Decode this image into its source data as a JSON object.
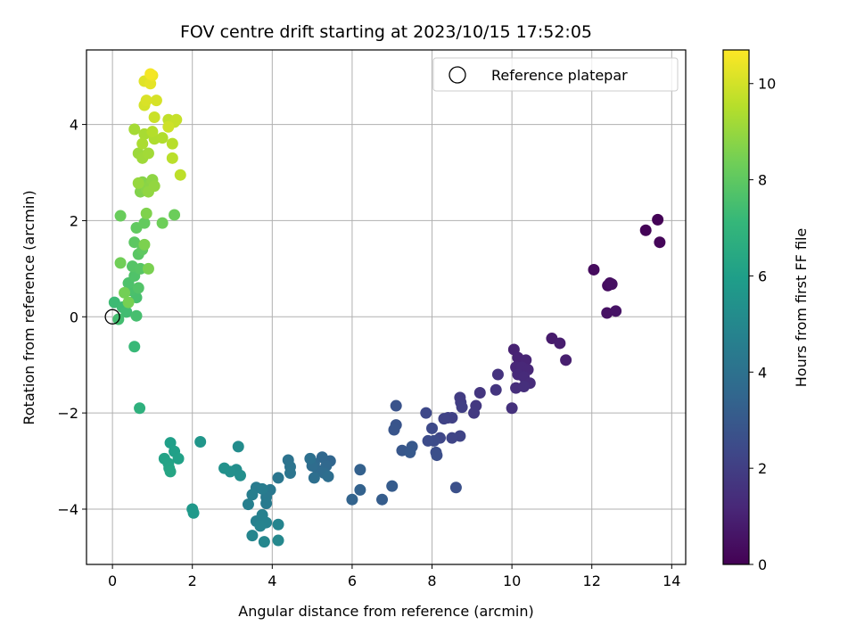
{
  "chart_data": {
    "type": "scatter",
    "title": "FOV centre drift starting at 2023/10/15 17:52:05",
    "xlabel": "Angular distance from reference (arcmin)",
    "ylabel": "Rotation from reference (arcmin)",
    "xlim": [
      -0.65,
      14.35
    ],
    "ylim": [
      -5.15,
      5.55
    ],
    "xticks": [
      0,
      2,
      4,
      6,
      8,
      10,
      12,
      14
    ],
    "yticks": [
      -4,
      -2,
      0,
      2,
      4
    ],
    "grid": true,
    "legend": {
      "location": "upper right",
      "entries": [
        "Reference platepar"
      ]
    },
    "reference_point": {
      "x": 0,
      "y": 0,
      "marker": "open circle"
    },
    "colorbar": {
      "label": "Hours from first FF file",
      "colormap": "viridis",
      "range": [
        0,
        10.7
      ],
      "ticks": [
        0,
        2,
        4,
        6,
        8,
        10
      ]
    },
    "colormap_stops": [
      "#440154",
      "#482878",
      "#3e4989",
      "#31688e",
      "#26828e",
      "#1f9e89",
      "#35b779",
      "#6ece58",
      "#b5de2b",
      "#fde725"
    ],
    "points": [
      {
        "x": 13.65,
        "y": 2.02,
        "h": 0.05
      },
      {
        "x": 13.35,
        "y": 1.8,
        "h": 0.1
      },
      {
        "x": 13.7,
        "y": 1.55,
        "h": 0.15
      },
      {
        "x": 12.05,
        "y": 0.98,
        "h": 0.3
      },
      {
        "x": 12.4,
        "y": 0.65,
        "h": 0.35
      },
      {
        "x": 12.45,
        "y": 0.7,
        "h": 0.4
      },
      {
        "x": 12.5,
        "y": 0.68,
        "h": 0.45
      },
      {
        "x": 12.38,
        "y": 0.08,
        "h": 0.5
      },
      {
        "x": 12.6,
        "y": 0.12,
        "h": 0.55
      },
      {
        "x": 11.0,
        "y": -0.45,
        "h": 0.8
      },
      {
        "x": 11.2,
        "y": -0.55,
        "h": 0.85
      },
      {
        "x": 11.35,
        "y": -0.9,
        "h": 0.9
      },
      {
        "x": 10.05,
        "y": -0.68,
        "h": 1.0
      },
      {
        "x": 10.15,
        "y": -0.85,
        "h": 1.05
      },
      {
        "x": 10.35,
        "y": -0.9,
        "h": 1.1
      },
      {
        "x": 10.1,
        "y": -1.05,
        "h": 1.15
      },
      {
        "x": 10.25,
        "y": -1.05,
        "h": 1.2
      },
      {
        "x": 10.4,
        "y": -1.1,
        "h": 1.2
      },
      {
        "x": 10.15,
        "y": -1.2,
        "h": 1.25
      },
      {
        "x": 10.3,
        "y": -1.25,
        "h": 1.3
      },
      {
        "x": 10.45,
        "y": -1.38,
        "h": 1.35
      },
      {
        "x": 10.1,
        "y": -1.48,
        "h": 1.4
      },
      {
        "x": 10.3,
        "y": -1.45,
        "h": 1.45
      },
      {
        "x": 10.0,
        "y": -1.9,
        "h": 1.5
      },
      {
        "x": 9.65,
        "y": -1.2,
        "h": 1.6
      },
      {
        "x": 9.6,
        "y": -1.52,
        "h": 1.65
      },
      {
        "x": 9.2,
        "y": -1.58,
        "h": 1.7
      },
      {
        "x": 9.1,
        "y": -1.85,
        "h": 1.75
      },
      {
        "x": 9.05,
        "y": -2.0,
        "h": 1.8
      },
      {
        "x": 8.7,
        "y": -1.68,
        "h": 1.9
      },
      {
        "x": 8.72,
        "y": -1.78,
        "h": 1.95
      },
      {
        "x": 8.75,
        "y": -1.88,
        "h": 2.0
      },
      {
        "x": 8.4,
        "y": -2.1,
        "h": 2.05
      },
      {
        "x": 8.5,
        "y": -2.1,
        "h": 2.1
      },
      {
        "x": 8.3,
        "y": -2.12,
        "h": 2.15
      },
      {
        "x": 8.7,
        "y": -2.48,
        "h": 2.2
      },
      {
        "x": 8.5,
        "y": -2.52,
        "h": 2.25
      },
      {
        "x": 8.2,
        "y": -2.52,
        "h": 2.3
      },
      {
        "x": 7.85,
        "y": -2.0,
        "h": 2.35
      },
      {
        "x": 8.0,
        "y": -2.32,
        "h": 2.4
      },
      {
        "x": 8.05,
        "y": -2.58,
        "h": 2.45
      },
      {
        "x": 7.9,
        "y": -2.58,
        "h": 2.5
      },
      {
        "x": 8.1,
        "y": -2.82,
        "h": 2.55
      },
      {
        "x": 8.12,
        "y": -2.88,
        "h": 2.6
      },
      {
        "x": 8.6,
        "y": -3.55,
        "h": 2.65
      },
      {
        "x": 7.1,
        "y": -1.85,
        "h": 2.75
      },
      {
        "x": 7.1,
        "y": -2.25,
        "h": 2.8
      },
      {
        "x": 7.05,
        "y": -2.35,
        "h": 2.85
      },
      {
        "x": 7.25,
        "y": -2.78,
        "h": 2.9
      },
      {
        "x": 7.5,
        "y": -2.7,
        "h": 2.95
      },
      {
        "x": 7.45,
        "y": -2.82,
        "h": 3.0
      },
      {
        "x": 7.0,
        "y": -3.52,
        "h": 3.1
      },
      {
        "x": 6.75,
        "y": -3.8,
        "h": 3.15
      },
      {
        "x": 6.2,
        "y": -3.18,
        "h": 3.3
      },
      {
        "x": 6.2,
        "y": -3.6,
        "h": 3.35
      },
      {
        "x": 6.0,
        "y": -3.8,
        "h": 3.4
      },
      {
        "x": 5.45,
        "y": -3.0,
        "h": 3.5
      },
      {
        "x": 5.25,
        "y": -2.92,
        "h": 3.55
      },
      {
        "x": 5.35,
        "y": -3.1,
        "h": 3.6
      },
      {
        "x": 5.05,
        "y": -3.05,
        "h": 3.65
      },
      {
        "x": 5.15,
        "y": -3.2,
        "h": 3.7
      },
      {
        "x": 5.3,
        "y": -3.25,
        "h": 3.75
      },
      {
        "x": 5.0,
        "y": -3.1,
        "h": 3.8
      },
      {
        "x": 5.4,
        "y": -3.32,
        "h": 3.85
      },
      {
        "x": 5.05,
        "y": -3.35,
        "h": 3.9
      },
      {
        "x": 4.95,
        "y": -2.95,
        "h": 3.95
      },
      {
        "x": 4.4,
        "y": -2.98,
        "h": 4.05
      },
      {
        "x": 4.45,
        "y": -3.12,
        "h": 4.1
      },
      {
        "x": 4.45,
        "y": -3.25,
        "h": 4.15
      },
      {
        "x": 4.15,
        "y": -3.35,
        "h": 4.2
      },
      {
        "x": 3.95,
        "y": -3.6,
        "h": 4.3
      },
      {
        "x": 3.85,
        "y": -3.75,
        "h": 4.35
      },
      {
        "x": 3.85,
        "y": -3.88,
        "h": 4.4
      },
      {
        "x": 3.6,
        "y": -3.55,
        "h": 4.45
      },
      {
        "x": 3.75,
        "y": -3.58,
        "h": 4.5
      },
      {
        "x": 3.5,
        "y": -3.7,
        "h": 4.55
      },
      {
        "x": 3.4,
        "y": -3.9,
        "h": 4.6
      },
      {
        "x": 3.6,
        "y": -4.25,
        "h": 4.65
      },
      {
        "x": 3.75,
        "y": -4.12,
        "h": 4.7
      },
      {
        "x": 3.85,
        "y": -4.28,
        "h": 4.75
      },
      {
        "x": 3.7,
        "y": -4.35,
        "h": 4.8
      },
      {
        "x": 4.15,
        "y": -4.32,
        "h": 4.85
      },
      {
        "x": 3.5,
        "y": -4.55,
        "h": 4.9
      },
      {
        "x": 3.8,
        "y": -4.68,
        "h": 4.95
      },
      {
        "x": 4.15,
        "y": -4.65,
        "h": 5.0
      },
      {
        "x": 3.15,
        "y": -2.7,
        "h": 5.2
      },
      {
        "x": 3.1,
        "y": -3.18,
        "h": 5.25
      },
      {
        "x": 3.2,
        "y": -3.3,
        "h": 5.3
      },
      {
        "x": 2.95,
        "y": -3.22,
        "h": 5.35
      },
      {
        "x": 2.8,
        "y": -3.15,
        "h": 5.4
      },
      {
        "x": 2.2,
        "y": -2.6,
        "h": 5.6
      },
      {
        "x": 2.0,
        "y": -4.0,
        "h": 5.7
      },
      {
        "x": 2.03,
        "y": -4.08,
        "h": 5.75
      },
      {
        "x": 1.45,
        "y": -2.62,
        "h": 6.0
      },
      {
        "x": 1.55,
        "y": -2.8,
        "h": 6.05
      },
      {
        "x": 1.65,
        "y": -2.95,
        "h": 6.1
      },
      {
        "x": 1.3,
        "y": -2.95,
        "h": 6.15
      },
      {
        "x": 1.4,
        "y": -3.05,
        "h": 6.2
      },
      {
        "x": 1.42,
        "y": -3.15,
        "h": 6.25
      },
      {
        "x": 1.45,
        "y": -3.22,
        "h": 6.3
      },
      {
        "x": 0.68,
        "y": -1.9,
        "h": 6.8
      },
      {
        "x": 0.55,
        "y": -0.62,
        "h": 7.2
      },
      {
        "x": 0.05,
        "y": 0.3,
        "h": 7.3
      },
      {
        "x": 0.25,
        "y": 0.2,
        "h": 7.35
      },
      {
        "x": 0.35,
        "y": 0.1,
        "h": 7.4
      },
      {
        "x": 0.15,
        "y": -0.05,
        "h": 7.45
      },
      {
        "x": 0.6,
        "y": 0.02,
        "h": 7.5
      },
      {
        "x": 0.6,
        "y": 0.4,
        "h": 7.55
      },
      {
        "x": 0.45,
        "y": 0.55,
        "h": 7.6
      },
      {
        "x": 0.4,
        "y": 0.7,
        "h": 7.65
      },
      {
        "x": 0.55,
        "y": 0.85,
        "h": 7.7
      },
      {
        "x": 0.65,
        "y": 0.6,
        "h": 7.75
      },
      {
        "x": 0.5,
        "y": 1.05,
        "h": 7.8
      },
      {
        "x": 0.7,
        "y": 1.0,
        "h": 7.85
      },
      {
        "x": 0.65,
        "y": 1.3,
        "h": 7.9
      },
      {
        "x": 0.55,
        "y": 1.55,
        "h": 7.95
      },
      {
        "x": 0.75,
        "y": 1.4,
        "h": 8.0
      },
      {
        "x": 0.6,
        "y": 1.85,
        "h": 8.05
      },
      {
        "x": 0.8,
        "y": 1.95,
        "h": 8.1
      },
      {
        "x": 0.2,
        "y": 2.1,
        "h": 8.2
      },
      {
        "x": 1.55,
        "y": 2.12,
        "h": 8.25
      },
      {
        "x": 1.25,
        "y": 1.95,
        "h": 8.3
      },
      {
        "x": 0.2,
        "y": 1.12,
        "h": 8.35
      },
      {
        "x": 0.3,
        "y": 0.5,
        "h": 8.4
      },
      {
        "x": 0.4,
        "y": 0.3,
        "h": 8.45
      },
      {
        "x": 0.9,
        "y": 1.0,
        "h": 8.5
      },
      {
        "x": 0.8,
        "y": 1.5,
        "h": 8.55
      },
      {
        "x": 0.85,
        "y": 2.15,
        "h": 8.6
      },
      {
        "x": 0.7,
        "y": 2.6,
        "h": 8.65
      },
      {
        "x": 0.75,
        "y": 2.8,
        "h": 8.7
      },
      {
        "x": 0.85,
        "y": 2.65,
        "h": 8.75
      },
      {
        "x": 0.95,
        "y": 2.75,
        "h": 8.8
      },
      {
        "x": 1.0,
        "y": 2.85,
        "h": 8.85
      },
      {
        "x": 0.9,
        "y": 2.6,
        "h": 8.9
      },
      {
        "x": 1.05,
        "y": 2.72,
        "h": 8.95
      },
      {
        "x": 0.65,
        "y": 2.78,
        "h": 9.0
      },
      {
        "x": 0.65,
        "y": 3.4,
        "h": 9.1
      },
      {
        "x": 0.75,
        "y": 3.3,
        "h": 9.15
      },
      {
        "x": 0.9,
        "y": 3.4,
        "h": 9.2
      },
      {
        "x": 0.55,
        "y": 3.9,
        "h": 9.25
      },
      {
        "x": 0.8,
        "y": 3.8,
        "h": 9.3
      },
      {
        "x": 0.75,
        "y": 3.6,
        "h": 9.35
      },
      {
        "x": 1.05,
        "y": 3.7,
        "h": 9.4
      },
      {
        "x": 1.25,
        "y": 3.72,
        "h": 9.45
      },
      {
        "x": 1.0,
        "y": 3.85,
        "h": 9.5
      },
      {
        "x": 1.5,
        "y": 3.6,
        "h": 9.55
      },
      {
        "x": 1.5,
        "y": 3.3,
        "h": 9.6
      },
      {
        "x": 1.7,
        "y": 2.95,
        "h": 9.65
      },
      {
        "x": 1.4,
        "y": 4.1,
        "h": 9.7
      },
      {
        "x": 1.55,
        "y": 4.05,
        "h": 9.75
      },
      {
        "x": 1.6,
        "y": 4.1,
        "h": 9.8
      },
      {
        "x": 1.05,
        "y": 4.15,
        "h": 9.85
      },
      {
        "x": 1.4,
        "y": 3.95,
        "h": 9.9
      },
      {
        "x": 0.8,
        "y": 4.4,
        "h": 10.0
      },
      {
        "x": 1.1,
        "y": 4.5,
        "h": 10.05
      },
      {
        "x": 0.85,
        "y": 4.5,
        "h": 10.1
      },
      {
        "x": 0.8,
        "y": 4.9,
        "h": 10.2
      },
      {
        "x": 0.95,
        "y": 4.85,
        "h": 10.3
      },
      {
        "x": 1.0,
        "y": 5.02,
        "h": 10.45
      },
      {
        "x": 0.95,
        "y": 5.05,
        "h": 10.55
      }
    ]
  }
}
